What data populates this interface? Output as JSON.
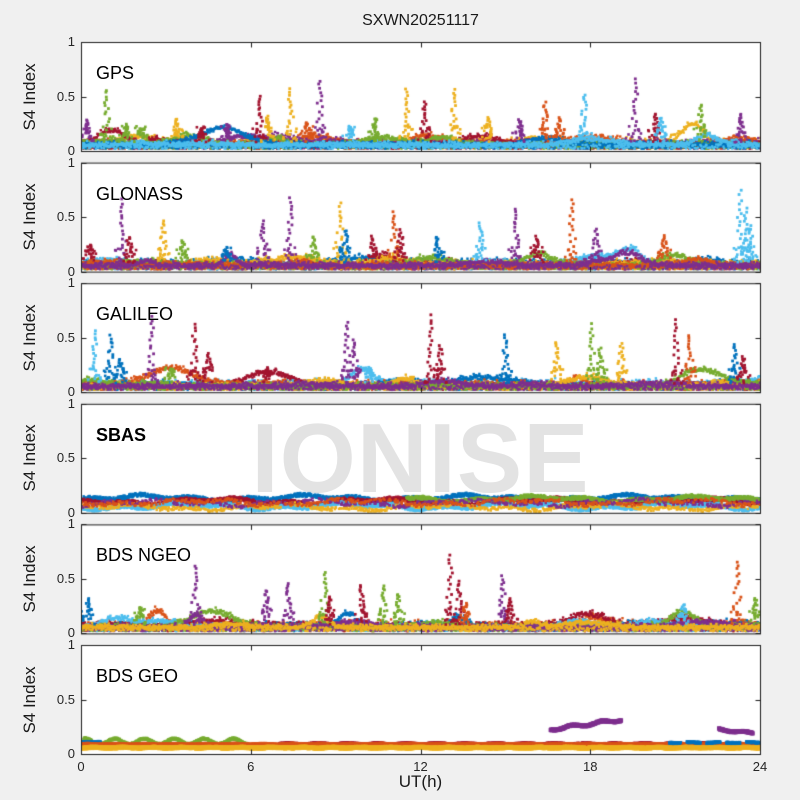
{
  "figure": {
    "title": "SXWN20251117",
    "background": "#f0f0f0"
  },
  "watermark": {
    "text": "IONISE",
    "color": "#e3e3e3"
  },
  "chart_data": {
    "type": "scatter",
    "title": "SXWN20251117",
    "xlabel": "UT(h)",
    "ylabel": "S4 Index",
    "xlim": [
      0,
      24
    ],
    "ylim": [
      0,
      1
    ],
    "xticks": [
      0,
      6,
      12,
      18,
      24
    ],
    "xtick_labels": [
      "0",
      "6",
      "12",
      "18",
      "24"
    ],
    "yticks": [
      0,
      0.5,
      1
    ],
    "ytick_labels": [
      "0",
      "0.5",
      "1"
    ],
    "grid": false,
    "legend": "none",
    "palette": [
      "#0072BD",
      "#D95319",
      "#EDB120",
      "#7E2F8E",
      "#77AC30",
      "#4DBEEE",
      "#A2142F"
    ],
    "subplots": [
      {
        "label": "GPS",
        "bold": false,
        "kind": "busy",
        "baseline": [
          {
            "ci": 2,
            "y": 0.07,
            "amp": 0.05
          },
          {
            "ci": 1,
            "y": 0.06,
            "amp": 0.05
          },
          {
            "ci": 3,
            "y": 0.06,
            "amp": 0.05
          },
          {
            "ci": 6,
            "y": 0.05,
            "amp": 0.04
          },
          {
            "ci": 4,
            "y": 0.05,
            "amp": 0.04
          },
          {
            "ci": 0,
            "y": 0.05,
            "amp": 0.04
          },
          {
            "ci": 5,
            "y": 0.05,
            "amp": 0.04
          }
        ],
        "spikes": [
          [
            0.2,
            0.28,
            3
          ],
          [
            0.9,
            0.56,
            4
          ],
          [
            1.6,
            0.24,
            4
          ],
          [
            2.1,
            0.2,
            4
          ],
          [
            3.4,
            0.3,
            2
          ],
          [
            4.3,
            0.22,
            6
          ],
          [
            5.2,
            0.24,
            3
          ],
          [
            6.3,
            0.5,
            6
          ],
          [
            6.6,
            0.32,
            2
          ],
          [
            7.4,
            0.57,
            2
          ],
          [
            8.0,
            0.26,
            1
          ],
          [
            8.45,
            0.64,
            3
          ],
          [
            9.5,
            0.22,
            5
          ],
          [
            10.4,
            0.3,
            4
          ],
          [
            11.5,
            0.56,
            2
          ],
          [
            12.15,
            0.46,
            6
          ],
          [
            13.2,
            0.56,
            2
          ],
          [
            14.4,
            0.3,
            2
          ],
          [
            15.5,
            0.28,
            3
          ],
          [
            16.4,
            0.44,
            1
          ],
          [
            16.9,
            0.3,
            1
          ],
          [
            17.8,
            0.52,
            5
          ],
          [
            19.6,
            0.66,
            3
          ],
          [
            20.3,
            0.34,
            6
          ],
          [
            20.5,
            0.3,
            5
          ],
          [
            21.9,
            0.42,
            4
          ],
          [
            23.3,
            0.34,
            3
          ]
        ]
      },
      {
        "label": "GLONASS",
        "bold": false,
        "kind": "busy",
        "baseline": [
          {
            "ci": 0,
            "y": 0.07,
            "amp": 0.05
          },
          {
            "ci": 6,
            "y": 0.05,
            "amp": 0.04
          },
          {
            "ci": 5,
            "y": 0.05,
            "amp": 0.035
          },
          {
            "ci": 2,
            "y": 0.06,
            "amp": 0.05
          },
          {
            "ci": 4,
            "y": 0.05,
            "amp": 0.04
          },
          {
            "ci": 1,
            "y": 0.05,
            "amp": 0.04
          },
          {
            "ci": 3,
            "y": 0.05,
            "amp": 0.04
          }
        ],
        "spikes": [
          [
            0.3,
            0.25,
            6
          ],
          [
            1.45,
            0.66,
            3
          ],
          [
            1.7,
            0.32,
            6
          ],
          [
            2.9,
            0.46,
            2
          ],
          [
            3.6,
            0.28,
            4
          ],
          [
            5.1,
            0.2,
            0
          ],
          [
            6.45,
            0.46,
            3
          ],
          [
            7.4,
            0.68,
            3
          ],
          [
            8.2,
            0.32,
            4
          ],
          [
            9.15,
            0.62,
            2
          ],
          [
            9.35,
            0.38,
            0
          ],
          [
            10.3,
            0.32,
            6
          ],
          [
            11.05,
            0.54,
            1
          ],
          [
            11.3,
            0.38,
            6
          ],
          [
            12.6,
            0.32,
            0
          ],
          [
            14.1,
            0.44,
            5
          ],
          [
            15.35,
            0.58,
            3
          ],
          [
            16.1,
            0.32,
            6
          ],
          [
            17.35,
            0.66,
            1
          ],
          [
            18.2,
            0.38,
            3
          ],
          [
            20.6,
            0.33,
            1
          ],
          [
            23.3,
            0.74,
            5
          ],
          [
            23.5,
            0.58,
            5
          ],
          [
            23.65,
            0.42,
            5
          ]
        ]
      },
      {
        "label": "GALILEO",
        "bold": false,
        "kind": "busy",
        "baseline": [
          {
            "ci": 5,
            "y": 0.07,
            "amp": 0.05
          },
          {
            "ci": 6,
            "y": 0.05,
            "amp": 0.04
          },
          {
            "ci": 0,
            "y": 0.05,
            "amp": 0.04
          },
          {
            "ci": 1,
            "y": 0.06,
            "amp": 0.05
          },
          {
            "ci": 2,
            "y": 0.05,
            "amp": 0.04
          },
          {
            "ci": 4,
            "y": 0.05,
            "amp": 0.035
          },
          {
            "ci": 3,
            "y": 0.05,
            "amp": 0.04
          }
        ],
        "spikes": [
          [
            0.5,
            0.56,
            5
          ],
          [
            1.05,
            0.52,
            0
          ],
          [
            1.4,
            0.3,
            0
          ],
          [
            2.5,
            0.7,
            3
          ],
          [
            3.2,
            0.22,
            4
          ],
          [
            4.0,
            0.62,
            6
          ],
          [
            4.5,
            0.36,
            6
          ],
          [
            6.6,
            0.22,
            6
          ],
          [
            9.4,
            0.64,
            3
          ],
          [
            9.65,
            0.48,
            3
          ],
          [
            10.2,
            0.22,
            5
          ],
          [
            12.4,
            0.7,
            6
          ],
          [
            12.7,
            0.42,
            6
          ],
          [
            15.0,
            0.52,
            0
          ],
          [
            16.8,
            0.46,
            2
          ],
          [
            18.05,
            0.62,
            4
          ],
          [
            18.35,
            0.4,
            4
          ],
          [
            19.1,
            0.44,
            2
          ],
          [
            21.05,
            0.66,
            6
          ],
          [
            21.5,
            0.52,
            1
          ],
          [
            23.1,
            0.44,
            0
          ],
          [
            23.4,
            0.32,
            6
          ]
        ]
      },
      {
        "label": "SBAS",
        "bold": true,
        "kind": "band",
        "bands": [
          {
            "ci": 0,
            "y": 0.135,
            "amp": 0.03,
            "t0": 0,
            "t1": 24,
            "density": 1
          },
          {
            "ci": 6,
            "y": 0.105,
            "amp": 0.03,
            "t0": 0,
            "t1": 24,
            "density": 1
          },
          {
            "ci": 5,
            "y": 0.06,
            "amp": 0.022,
            "t0": 0,
            "t1": 24,
            "density": 1
          },
          {
            "ci": 4,
            "y": 0.125,
            "amp": 0.04,
            "t0": 11.5,
            "t1": 24,
            "density": 1
          },
          {
            "ci": 2,
            "y": 0.05,
            "amp": 0.02,
            "t0": 0,
            "t1": 24,
            "density": 0.4
          },
          {
            "ci": 3,
            "y": 0.09,
            "amp": 0.025,
            "t0": 0,
            "t1": 24,
            "density": 0.3
          },
          {
            "ci": 1,
            "y": 0.095,
            "amp": 0.02,
            "t0": 0,
            "t1": 24,
            "density": 0.3
          }
        ],
        "spikes": []
      },
      {
        "label": "BDS NGEO",
        "bold": false,
        "kind": "busy",
        "baseline": [
          {
            "ci": 1,
            "y": 0.07,
            "amp": 0.05
          },
          {
            "ci": 0,
            "y": 0.06,
            "amp": 0.05
          },
          {
            "ci": 6,
            "y": 0.06,
            "amp": 0.05
          },
          {
            "ci": 5,
            "y": 0.05,
            "amp": 0.04
          },
          {
            "ci": 4,
            "y": 0.05,
            "amp": 0.04
          },
          {
            "ci": 3,
            "y": 0.05,
            "amp": 0.04
          },
          {
            "ci": 2,
            "y": 0.05,
            "amp": 0.035
          }
        ],
        "spikes": [
          [
            0.25,
            0.32,
            0
          ],
          [
            2.1,
            0.24,
            4
          ],
          [
            4.05,
            0.62,
            3
          ],
          [
            6.55,
            0.4,
            3
          ],
          [
            7.3,
            0.46,
            3
          ],
          [
            8.6,
            0.56,
            4
          ],
          [
            8.8,
            0.34,
            6
          ],
          [
            9.9,
            0.44,
            6
          ],
          [
            10.7,
            0.44,
            4
          ],
          [
            11.2,
            0.36,
            4
          ],
          [
            13.05,
            0.72,
            6
          ],
          [
            13.35,
            0.48,
            6
          ],
          [
            13.6,
            0.27,
            1
          ],
          [
            14.9,
            0.52,
            3
          ],
          [
            15.2,
            0.32,
            6
          ],
          [
            21.3,
            0.26,
            5
          ],
          [
            23.2,
            0.66,
            1
          ],
          [
            23.85,
            0.32,
            4
          ]
        ]
      },
      {
        "label": "BDS GEO",
        "bold": false,
        "kind": "lines",
        "lines": [
          {
            "ci": 4,
            "t0": 0.1,
            "t1": 5.9,
            "y": 0.115,
            "wave": 0.025,
            "noise": 0.008,
            "size": 3
          },
          {
            "ci": 0,
            "t0": 0.0,
            "t1": 0.7,
            "y": 0.11,
            "wave": 0,
            "noise": 0.006,
            "size": 3
          },
          {
            "ci": 6,
            "t0": 7.0,
            "t1": 24,
            "y": 0.095,
            "wave": 0.004,
            "noise": 0.005,
            "size": 3
          },
          {
            "ci": 1,
            "t0": 0,
            "t1": 24,
            "y": 0.085,
            "wave": 0.003,
            "noise": 0.006,
            "size": 4
          },
          {
            "ci": 2,
            "t0": 0,
            "t1": 24,
            "y": 0.058,
            "wave": 0.003,
            "noise": 0.007,
            "size": 4
          },
          {
            "ci": 0,
            "t0": 20.8,
            "t1": 24,
            "y": 0.105,
            "wave": 0.004,
            "noise": 0.006,
            "size": 3,
            "dash": true
          },
          {
            "ci": 3,
            "t0": 16.6,
            "t1": 19.1,
            "y0": 0.225,
            "y1": 0.315,
            "wave": 0.012,
            "noise": 0.006,
            "size": 4
          },
          {
            "ci": 3,
            "t0": 22.55,
            "t1": 23.75,
            "y0": 0.225,
            "y1": 0.19,
            "wave": 0.008,
            "noise": 0.005,
            "size": 4
          }
        ]
      }
    ]
  }
}
